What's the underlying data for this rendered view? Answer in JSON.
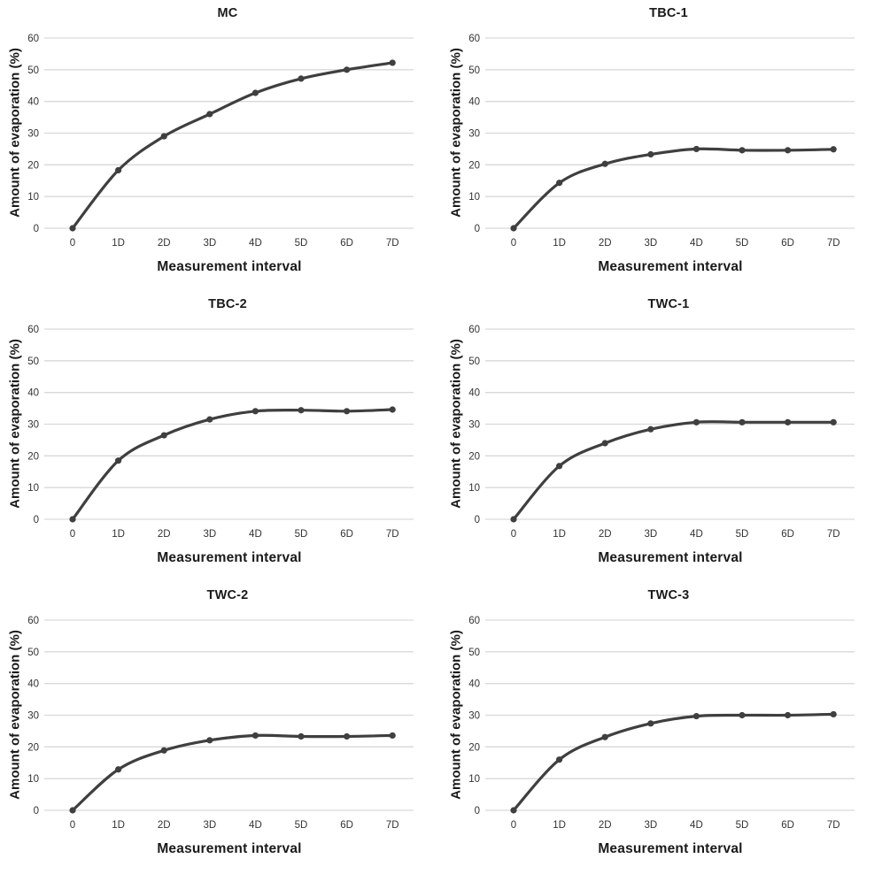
{
  "colors": {
    "line": "#3f3f3f",
    "marker": "#3f3f3f",
    "gridline": "#d9d9d9",
    "tick_text": "#333333",
    "title_text": "#1a1a1a",
    "background": "#ffffff"
  },
  "chart_data": [
    {
      "type": "line",
      "title": "MC",
      "xlabel": "Measurement interval",
      "ylabel": "Amount of evaporation (%)",
      "categories": [
        "0",
        "1D",
        "2D",
        "3D",
        "4D",
        "5D",
        "6D",
        "7D"
      ],
      "values": [
        0,
        18.3,
        29,
        36,
        42.7,
        47.2,
        50,
        52.2
      ],
      "ylim": [
        0,
        60
      ],
      "yticks": [
        0,
        10,
        20,
        30,
        40,
        50,
        60
      ],
      "grid": "horizontal",
      "legend": "none",
      "marker": "circle"
    },
    {
      "type": "line",
      "title": "TBC-1",
      "xlabel": "Measurement interval",
      "ylabel": "Amount of evaporation (%)",
      "categories": [
        "0",
        "1D",
        "2D",
        "3D",
        "4D",
        "5D",
        "6D",
        "7D"
      ],
      "values": [
        0,
        14.3,
        20.3,
        23.3,
        25,
        24.6,
        24.6,
        24.9
      ],
      "ylim": [
        0,
        60
      ],
      "yticks": [
        0,
        10,
        20,
        30,
        40,
        50,
        60
      ],
      "grid": "horizontal",
      "legend": "none",
      "marker": "circle"
    },
    {
      "type": "line",
      "title": "TBC-2",
      "xlabel": "Measurement interval",
      "ylabel": "Amount of evaporation (%)",
      "categories": [
        "0",
        "1D",
        "2D",
        "3D",
        "4D",
        "5D",
        "6D",
        "7D"
      ],
      "values": [
        0,
        18.5,
        26.5,
        31.5,
        34.1,
        34.4,
        34.1,
        34.6
      ],
      "ylim": [
        0,
        60
      ],
      "yticks": [
        0,
        10,
        20,
        30,
        40,
        50,
        60
      ],
      "grid": "horizontal",
      "legend": "none",
      "marker": "circle"
    },
    {
      "type": "line",
      "title": "TWC-1",
      "xlabel": "Measurement interval",
      "ylabel": "Amount of evaporation (%)",
      "categories": [
        "0",
        "1D",
        "2D",
        "3D",
        "4D",
        "5D",
        "6D",
        "7D"
      ],
      "values": [
        0,
        16.8,
        24,
        28.4,
        30.6,
        30.6,
        30.6,
        30.6
      ],
      "ylim": [
        0,
        60
      ],
      "yticks": [
        0,
        10,
        20,
        30,
        40,
        50,
        60
      ],
      "grid": "horizontal",
      "legend": "none",
      "marker": "circle"
    },
    {
      "type": "line",
      "title": "TWC-2",
      "xlabel": "Measurement interval",
      "ylabel": "Amount of evaporation (%)",
      "categories": [
        "0",
        "1D",
        "2D",
        "3D",
        "4D",
        "5D",
        "6D",
        "7D"
      ],
      "values": [
        0,
        12.9,
        18.9,
        22.1,
        23.6,
        23.3,
        23.3,
        23.6
      ],
      "ylim": [
        0,
        60
      ],
      "yticks": [
        0,
        10,
        20,
        30,
        40,
        50,
        60
      ],
      "grid": "horizontal",
      "legend": "none",
      "marker": "circle"
    },
    {
      "type": "line",
      "title": "TWC-3",
      "xlabel": "Measurement interval",
      "ylabel": "Amount of evaporation (%)",
      "categories": [
        "0",
        "1D",
        "2D",
        "3D",
        "4D",
        "5D",
        "6D",
        "7D"
      ],
      "values": [
        0,
        16,
        23.1,
        27.4,
        29.7,
        30,
        30,
        30.3
      ],
      "ylim": [
        0,
        60
      ],
      "yticks": [
        0,
        10,
        20,
        30,
        40,
        50,
        60
      ],
      "grid": "horizontal",
      "legend": "none",
      "marker": "circle"
    }
  ]
}
